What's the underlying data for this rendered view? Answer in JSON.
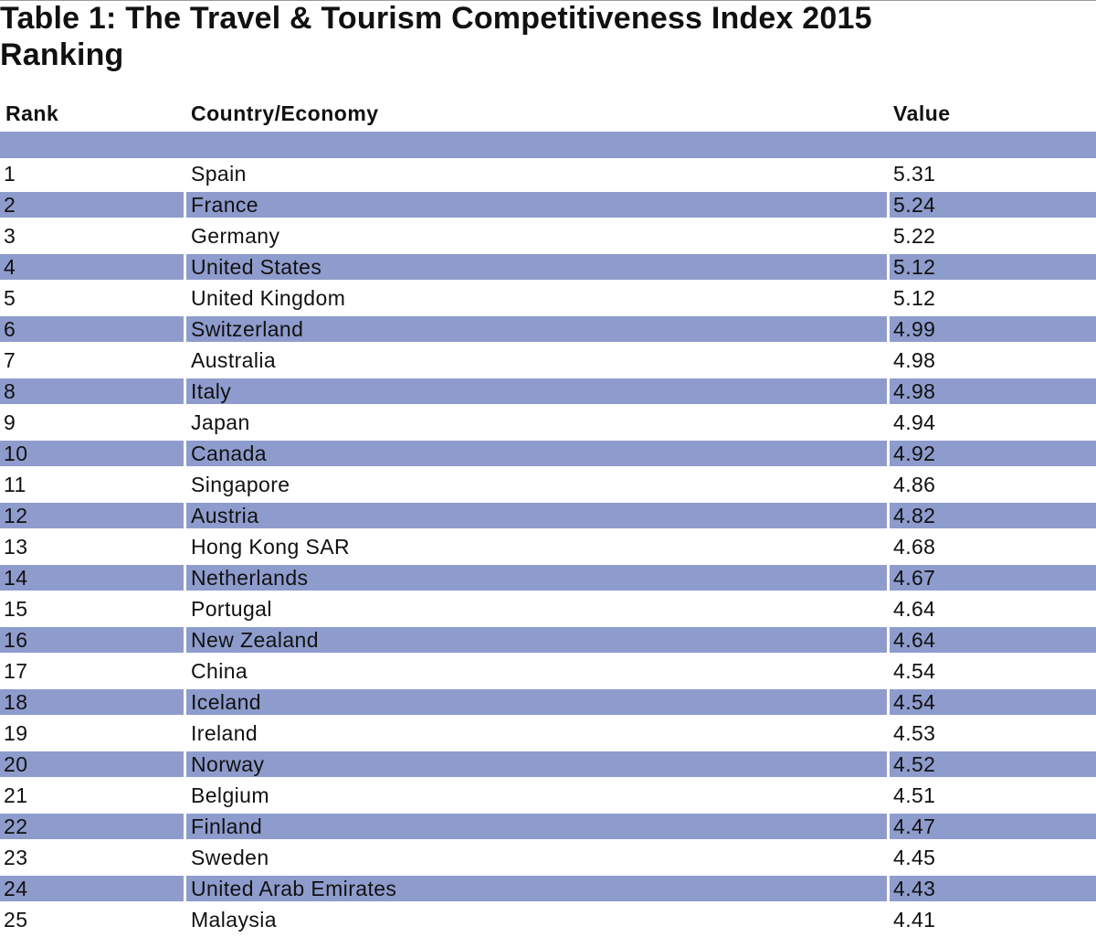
{
  "title": {
    "line1": "Table 1: The Travel & Tourism Competitiveness Index 2015",
    "line2": "Ranking"
  },
  "table": {
    "headers": {
      "rank": "Rank",
      "country": "Country/Economy",
      "value": "Value"
    },
    "rows": [
      {
        "rank": "1",
        "country": "Spain",
        "value": "5.31"
      },
      {
        "rank": "2",
        "country": "France",
        "value": "5.24"
      },
      {
        "rank": "3",
        "country": "Germany",
        "value": "5.22"
      },
      {
        "rank": "4",
        "country": "United States",
        "value": "5.12"
      },
      {
        "rank": "5",
        "country": "United Kingdom",
        "value": "5.12"
      },
      {
        "rank": "6",
        "country": "Switzerland",
        "value": "4.99"
      },
      {
        "rank": "7",
        "country": "Australia",
        "value": "4.98"
      },
      {
        "rank": "8",
        "country": "Italy",
        "value": "4.98"
      },
      {
        "rank": "9",
        "country": "Japan",
        "value": "4.94"
      },
      {
        "rank": "10",
        "country": "Canada",
        "value": "4.92"
      },
      {
        "rank": "11",
        "country": "Singapore",
        "value": "4.86"
      },
      {
        "rank": "12",
        "country": "Austria",
        "value": "4.82"
      },
      {
        "rank": "13",
        "country": "Hong Kong SAR",
        "value": "4.68"
      },
      {
        "rank": "14",
        "country": "Netherlands",
        "value": "4.67"
      },
      {
        "rank": "15",
        "country": "Portugal",
        "value": "4.64"
      },
      {
        "rank": "16",
        "country": "New Zealand",
        "value": "4.64"
      },
      {
        "rank": "17",
        "country": "China",
        "value": "4.54"
      },
      {
        "rank": "18",
        "country": "Iceland",
        "value": "4.54"
      },
      {
        "rank": "19",
        "country": "Ireland",
        "value": "4.53"
      },
      {
        "rank": "20",
        "country": "Norway",
        "value": "4.52"
      },
      {
        "rank": "21",
        "country": "Belgium",
        "value": "4.51"
      },
      {
        "rank": "22",
        "country": "Finland",
        "value": "4.47"
      },
      {
        "rank": "23",
        "country": "Sweden",
        "value": "4.45"
      },
      {
        "rank": "24",
        "country": "United Arab Emirates",
        "value": "4.43"
      },
      {
        "rank": "25",
        "country": "Malaysia",
        "value": "4.41"
      }
    ]
  },
  "colors": {
    "band": "#8e9ccd",
    "text": "#111111",
    "background": "#ffffff"
  }
}
